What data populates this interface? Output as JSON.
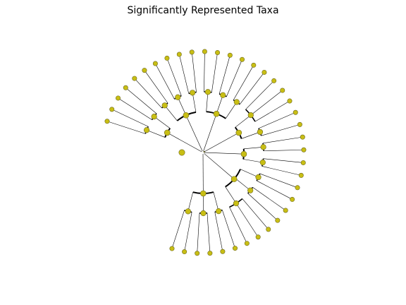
{
  "title": "Significantly Represented Taxa",
  "colors": {
    "node_fill": "#c8be14",
    "node_stroke": "#6e6a1e",
    "edge": "#000000"
  },
  "tree": {
    "type": "circular-cladogram",
    "root": {
      "children": [
        {
          "children": [
            {
              "children": [
                {},
                {}
              ]
            },
            {
              "children": [
                {},
                {}
              ]
            }
          ]
        },
        {
          "children": [
            {
              "children": [
                {},
                {}
              ]
            },
            {
              "children": [
                {},
                {}
              ]
            },
            {
              "children": [
                {},
                {}
              ]
            }
          ]
        },
        {
          "children": [
            {
              "children": [
                {},
                {}
              ]
            },
            {
              "children": [
                {},
                {}
              ]
            },
            {
              "children": [
                {},
                {}
              ]
            }
          ]
        },
        {
          "children": [
            {
              "children": [
                {},
                {},
                {}
              ]
            },
            {
              "children": [
                {},
                {}
              ]
            }
          ]
        },
        {
          "children": [
            {
              "children": [
                {},
                {}
              ]
            },
            {
              "children": [
                {},
                {}
              ]
            }
          ]
        },
        {
          "children": [
            {
              "children": [
                {},
                {}
              ]
            },
            {
              "children": [
                {},
                {}
              ]
            },
            {
              "children": [
                {},
                {},
                {}
              ]
            }
          ]
        },
        {
          "children": [
            {
              "children": [
                {},
                {}
              ]
            },
            {
              "children": [
                {},
                {}
              ]
            },
            {
              "children": [
                {},
                {}
              ]
            }
          ]
        }
      ]
    }
  }
}
